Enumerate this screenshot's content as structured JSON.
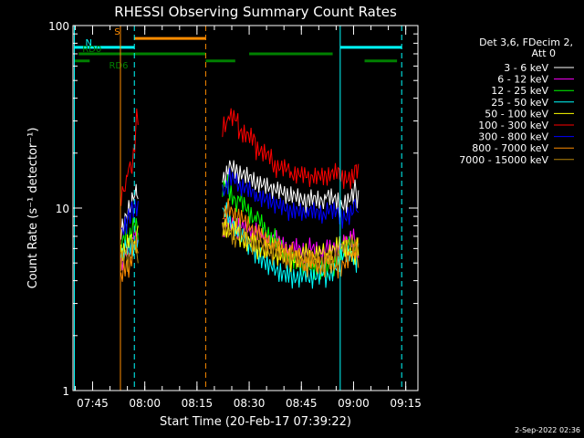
{
  "chart_data": {
    "type": "line",
    "title": "RHESSI Observing Summary Count Rates",
    "xlabel": "Start Time (20-Feb-17 07:39:22)",
    "ylabel": "Count Rate (s⁻¹ detector⁻¹)",
    "y_scale": "log",
    "ylim": [
      1,
      100
    ],
    "x_unit": "minutes",
    "xlim": [
      "07:39:22",
      "09:18:30"
    ],
    "x_ticks": [
      "07:45",
      "08:00",
      "08:15",
      "08:30",
      "08:45",
      "09:00",
      "09:15"
    ],
    "y_ticks": [
      "1",
      "10",
      "100"
    ],
    "grid": false,
    "legend_placement": "right",
    "legend_header": [
      "Det 3,6, FDecim 2,",
      "Att 0"
    ],
    "footer_date": "2-Sep-2022 02:36",
    "series": [
      {
        "name": "3 - 6 keV",
        "color": "#ffffff",
        "x": [
          "07:53:10",
          "07:55:00",
          "07:56:20",
          "07:57:40",
          "08:22:20",
          "08:24:00",
          "08:27:00",
          "08:32:00",
          "08:37:00",
          "08:42:00",
          "08:47:00",
          "08:52:00",
          "08:56:00",
          "09:00:00",
          "09:01:00"
        ],
        "y": [
          8,
          10,
          11,
          12,
          15,
          16,
          15,
          13,
          12,
          11,
          10.5,
          11,
          11,
          12,
          12
        ]
      },
      {
        "name": "6 - 12 keV",
        "color": "#ff00ff",
        "x": [
          "07:53:10",
          "07:55:00",
          "07:56:20",
          "07:57:40",
          "08:22:20",
          "08:24:00",
          "08:27:00",
          "08:32:00",
          "08:37:00",
          "08:42:00",
          "08:47:00",
          "08:52:00",
          "08:56:00",
          "09:00:00",
          "09:01:00"
        ],
        "y": [
          5,
          6,
          6.5,
          7,
          7.5,
          8,
          7.5,
          7,
          6.5,
          6,
          6,
          6,
          6.5,
          6.5,
          6
        ]
      },
      {
        "name": "12 - 25 keV",
        "color": "#00ff00",
        "x": [
          "07:53:10",
          "07:55:00",
          "07:56:20",
          "07:57:40",
          "08:22:20",
          "08:24:00",
          "08:27:00",
          "08:32:00",
          "08:37:00",
          "08:42:00",
          "08:47:00",
          "08:52:00",
          "08:56:00",
          "09:00:00",
          "09:01:00"
        ],
        "y": [
          6,
          7,
          7.5,
          8,
          12,
          13,
          11,
          9,
          7,
          5.5,
          5,
          5,
          5.5,
          6,
          6
        ]
      },
      {
        "name": "25 - 50 keV",
        "color": "#00ffff",
        "x": [
          "07:53:10",
          "07:55:00",
          "07:56:20",
          "07:57:40",
          "08:22:20",
          "08:24:00",
          "08:27:00",
          "08:32:00",
          "08:37:00",
          "08:42:00",
          "08:47:00",
          "08:52:00",
          "08:56:00",
          "09:00:00",
          "09:01:00"
        ],
        "y": [
          5,
          6,
          6,
          6.5,
          9,
          9.5,
          8,
          6,
          5,
          4.5,
          4.5,
          4.5,
          5,
          5.5,
          5.5
        ]
      },
      {
        "name": "50 - 100 keV",
        "color": "#ffff00",
        "x": [
          "07:53:10",
          "07:55:00",
          "07:56:20",
          "07:57:40",
          "08:22:20",
          "08:24:00",
          "08:27:00",
          "08:32:00",
          "08:37:00",
          "08:42:00",
          "08:47:00",
          "08:52:00",
          "08:56:00",
          "09:00:00",
          "09:01:00"
        ],
        "y": [
          5.5,
          6,
          6.5,
          7,
          8,
          8,
          7.5,
          6.5,
          6,
          5.5,
          5.5,
          5.5,
          6,
          6,
          6
        ]
      },
      {
        "name": "100 - 300 keV",
        "color": "#ff0000",
        "x": [
          "07:53:10",
          "07:55:00",
          "07:56:20",
          "07:57:40",
          "08:22:20",
          "08:24:00",
          "08:27:00",
          "08:32:00",
          "08:37:00",
          "08:42:00",
          "08:47:00",
          "08:52:00",
          "08:56:00",
          "09:00:00",
          "09:01:00"
        ],
        "y": [
          12,
          15,
          17,
          30,
          30,
          32,
          28,
          22,
          17,
          15,
          14,
          14,
          15,
          16,
          17
        ]
      },
      {
        "name": "300 - 800 keV",
        "color": "#0000ff",
        "x": [
          "07:53:10",
          "07:55:00",
          "07:56:20",
          "07:57:40",
          "08:22:20",
          "08:24:00",
          "08:27:00",
          "08:32:00",
          "08:37:00",
          "08:42:00",
          "08:47:00",
          "08:52:00",
          "08:56:00",
          "09:00:00",
          "09:01:00"
        ],
        "y": [
          8,
          9,
          10,
          10,
          13,
          14,
          13,
          11,
          10,
          9,
          9,
          9,
          9.5,
          10,
          10
        ]
      },
      {
        "name": "800 - 7000 keV",
        "color": "#ff8c00",
        "x": [
          "07:53:10",
          "07:55:00",
          "07:56:20",
          "07:57:40",
          "08:22:20",
          "08:24:00",
          "08:27:00",
          "08:32:00",
          "08:37:00",
          "08:42:00",
          "08:47:00",
          "08:52:00",
          "08:56:00",
          "09:00:00",
          "09:01:00"
        ],
        "y": [
          4.5,
          5,
          5.5,
          6,
          9,
          9.5,
          8.5,
          7,
          6,
          5.5,
          5,
          5,
          5,
          5.5,
          5.5
        ]
      },
      {
        "name": "7000 - 15000 keV",
        "color": "#b8860b",
        "x": [
          "07:53:10",
          "07:55:00",
          "07:56:20",
          "07:57:40",
          "08:22:20",
          "08:24:00",
          "08:27:00",
          "08:32:00",
          "08:37:00",
          "08:42:00",
          "08:47:00",
          "08:52:00",
          "08:56:00",
          "09:00:00",
          "09:01:00"
        ],
        "y": [
          5,
          5.5,
          6,
          6,
          7,
          7.5,
          7,
          6.5,
          6,
          5.5,
          5.5,
          5.5,
          6,
          6,
          6
        ]
      }
    ],
    "vertical_markers": [
      {
        "time": "07:39:45",
        "color": "#00ffff",
        "style": "solid"
      },
      {
        "time": "07:57:00",
        "color": "#00ffff",
        "style": "dashed"
      },
      {
        "time": "08:17:30",
        "color": "#ff8c00",
        "style": "dashed"
      },
      {
        "time": "08:56:10",
        "color": "#00ffff",
        "style": "solid"
      },
      {
        "time": "09:13:50",
        "color": "#00ffff",
        "style": "dashed"
      },
      {
        "time": "07:53:00",
        "color": "#ff8c00",
        "style": "solid"
      }
    ],
    "flag_bars": [
      {
        "label": "S",
        "color": "#ff8c00",
        "level": 85,
        "segments": [
          [
            "07:57:00",
            "08:17:30"
          ]
        ]
      },
      {
        "label": "N",
        "color": "#00ffff",
        "level": 76,
        "segments": [
          [
            "07:39:45",
            "07:57:00"
          ],
          [
            "08:56:10",
            "09:13:50"
          ]
        ]
      },
      {
        "label": "RD0",
        "color": "#008000",
        "level": 70,
        "segments": [
          [
            "07:41:00",
            "08:17:30"
          ],
          [
            "08:30:00",
            "08:54:00"
          ]
        ]
      },
      {
        "label": "RD6",
        "color": "#008000",
        "level": 64,
        "segments": [
          [
            "07:39:45",
            "07:44:10"
          ],
          [
            "08:17:30",
            "08:26:00"
          ],
          [
            "09:03:10",
            "09:12:30"
          ]
        ]
      }
    ]
  }
}
